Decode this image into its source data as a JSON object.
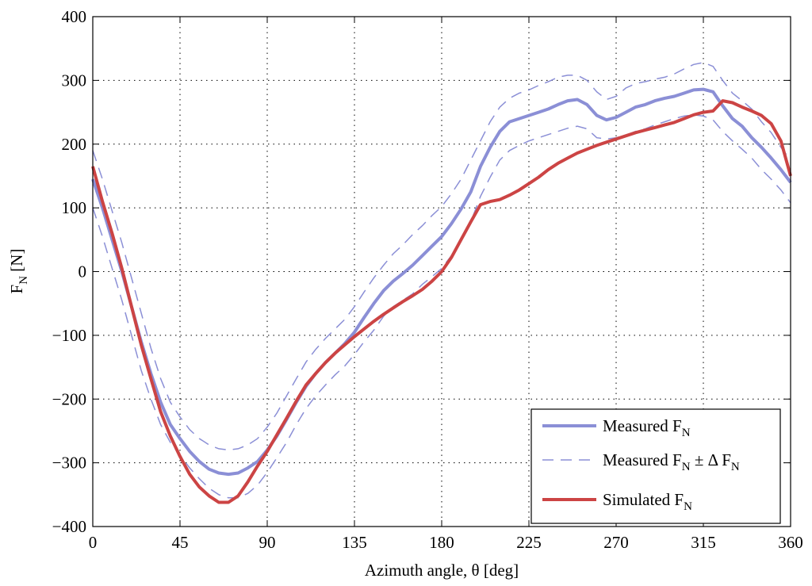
{
  "chart_data": {
    "type": "line",
    "xlabel": "Azimuth angle, θ [deg]",
    "ylabel": {
      "main": "F",
      "sub": "N",
      "tail": " [N]"
    },
    "xlim": [
      0,
      360
    ],
    "ylim": [
      -400,
      400
    ],
    "xticks": [
      0,
      45,
      90,
      135,
      180,
      225,
      270,
      315,
      360
    ],
    "yticks": [
      -400,
      -300,
      -200,
      -100,
      0,
      100,
      200,
      300,
      400
    ],
    "xtick_labels": [
      "0",
      "45",
      "90",
      "135",
      "180",
      "225",
      "270",
      "315",
      "360"
    ],
    "ytick_labels": [
      "−400",
      "−300",
      "−200",
      "−100",
      "0",
      "100",
      "200",
      "300",
      "400"
    ],
    "grid": true,
    "legend_position": "bottom-right",
    "series": [
      {
        "name": "Measured F_N",
        "legend": {
          "pre": "Measured F",
          "sub": "N",
          "post": ""
        },
        "color": "#8b8fd6",
        "style": "solid-thick",
        "x": [
          0,
          5,
          10,
          15,
          20,
          25,
          30,
          35,
          40,
          45,
          50,
          55,
          60,
          65,
          70,
          75,
          80,
          85,
          90,
          95,
          100,
          105,
          110,
          115,
          120,
          125,
          130,
          135,
          140,
          145,
          150,
          155,
          160,
          165,
          170,
          175,
          180,
          185,
          190,
          195,
          200,
          205,
          210,
          215,
          220,
          225,
          230,
          235,
          240,
          245,
          250,
          255,
          260,
          265,
          270,
          275,
          280,
          285,
          290,
          295,
          300,
          305,
          310,
          315,
          320,
          325,
          330,
          335,
          340,
          345,
          350,
          355,
          360
        ],
        "y": [
          145,
          100,
          50,
          0,
          -55,
          -110,
          -160,
          -205,
          -240,
          -262,
          -282,
          -298,
          -310,
          -316,
          -318,
          -316,
          -308,
          -298,
          -280,
          -258,
          -232,
          -205,
          -180,
          -160,
          -143,
          -128,
          -113,
          -95,
          -72,
          -50,
          -30,
          -15,
          -3,
          10,
          25,
          40,
          55,
          75,
          98,
          125,
          165,
          195,
          220,
          235,
          240,
          245,
          250,
          255,
          262,
          268,
          270,
          262,
          245,
          238,
          242,
          250,
          258,
          262,
          268,
          272,
          275,
          280,
          285,
          286,
          282,
          260,
          240,
          228,
          210,
          195,
          178,
          160,
          140
        ]
      },
      {
        "name": "Measured F_N ± ΔF_N",
        "legend": {
          "pre": "Measured F",
          "sub": "N",
          "post": " ± Δ F",
          "sub2": "N"
        },
        "color": "#8b8fd6",
        "style": "dashed",
        "x": [
          0,
          5,
          10,
          15,
          20,
          25,
          30,
          35,
          40,
          45,
          50,
          55,
          60,
          65,
          70,
          75,
          80,
          85,
          90,
          95,
          100,
          105,
          110,
          115,
          120,
          125,
          130,
          135,
          140,
          145,
          150,
          155,
          160,
          165,
          170,
          175,
          180,
          185,
          190,
          195,
          200,
          205,
          210,
          215,
          220,
          225,
          230,
          235,
          240,
          245,
          250,
          255,
          260,
          265,
          270,
          275,
          280,
          285,
          290,
          295,
          300,
          305,
          310,
          315,
          320,
          325,
          330,
          335,
          340,
          345,
          350,
          355,
          360
        ],
        "upper": [
          190,
          145,
          95,
          45,
          -10,
          -65,
          -120,
          -168,
          -205,
          -228,
          -248,
          -262,
          -272,
          -278,
          -280,
          -278,
          -272,
          -262,
          -244,
          -222,
          -195,
          -168,
          -142,
          -122,
          -105,
          -90,
          -75,
          -55,
          -32,
          -10,
          10,
          28,
          42,
          58,
          72,
          88,
          102,
          122,
          145,
          175,
          205,
          235,
          258,
          272,
          280,
          285,
          292,
          298,
          305,
          308,
          308,
          300,
          282,
          270,
          275,
          288,
          295,
          298,
          302,
          305,
          310,
          318,
          325,
          328,
          322,
          300,
          280,
          268,
          255,
          235,
          218,
          195,
          175
        ],
        "lower": [
          100,
          55,
          5,
          -45,
          -100,
          -155,
          -200,
          -240,
          -268,
          -288,
          -308,
          -325,
          -340,
          -350,
          -355,
          -355,
          -348,
          -335,
          -315,
          -292,
          -268,
          -240,
          -215,
          -195,
          -178,
          -162,
          -148,
          -130,
          -110,
          -92,
          -70,
          -55,
          -45,
          -35,
          -20,
          -8,
          5,
          25,
          50,
          78,
          118,
          148,
          175,
          190,
          198,
          205,
          210,
          215,
          220,
          225,
          228,
          224,
          210,
          208,
          210,
          214,
          220,
          224,
          230,
          235,
          240,
          244,
          246,
          244,
          238,
          220,
          205,
          192,
          178,
          160,
          145,
          128,
          108
        ]
      },
      {
        "name": "Simulated F_N",
        "legend": {
          "pre": "Simulated F",
          "sub": "N",
          "post": ""
        },
        "color": "#cc4444",
        "style": "solid-thick",
        "x": [
          0,
          5,
          10,
          15,
          20,
          25,
          30,
          35,
          40,
          45,
          50,
          55,
          60,
          65,
          70,
          75,
          80,
          85,
          90,
          95,
          100,
          105,
          110,
          115,
          120,
          125,
          130,
          135,
          140,
          145,
          150,
          155,
          160,
          165,
          170,
          175,
          180,
          185,
          190,
          195,
          200,
          205,
          210,
          215,
          220,
          225,
          230,
          235,
          240,
          245,
          250,
          255,
          260,
          265,
          270,
          275,
          280,
          285,
          290,
          295,
          300,
          305,
          310,
          315,
          320,
          325,
          330,
          335,
          340,
          345,
          350,
          355,
          360
        ],
        "y": [
          165,
          110,
          60,
          5,
          -55,
          -115,
          -168,
          -220,
          -258,
          -290,
          -318,
          -338,
          -352,
          -362,
          -362,
          -352,
          -330,
          -305,
          -282,
          -256,
          -230,
          -203,
          -178,
          -160,
          -143,
          -128,
          -115,
          -102,
          -90,
          -78,
          -67,
          -57,
          -47,
          -38,
          -28,
          -15,
          0,
          22,
          50,
          78,
          105,
          110,
          113,
          120,
          128,
          138,
          148,
          160,
          170,
          178,
          186,
          192,
          198,
          203,
          208,
          213,
          218,
          222,
          226,
          230,
          234,
          240,
          246,
          250,
          252,
          268,
          265,
          258,
          252,
          245,
          232,
          205,
          150
        ]
      }
    ]
  }
}
